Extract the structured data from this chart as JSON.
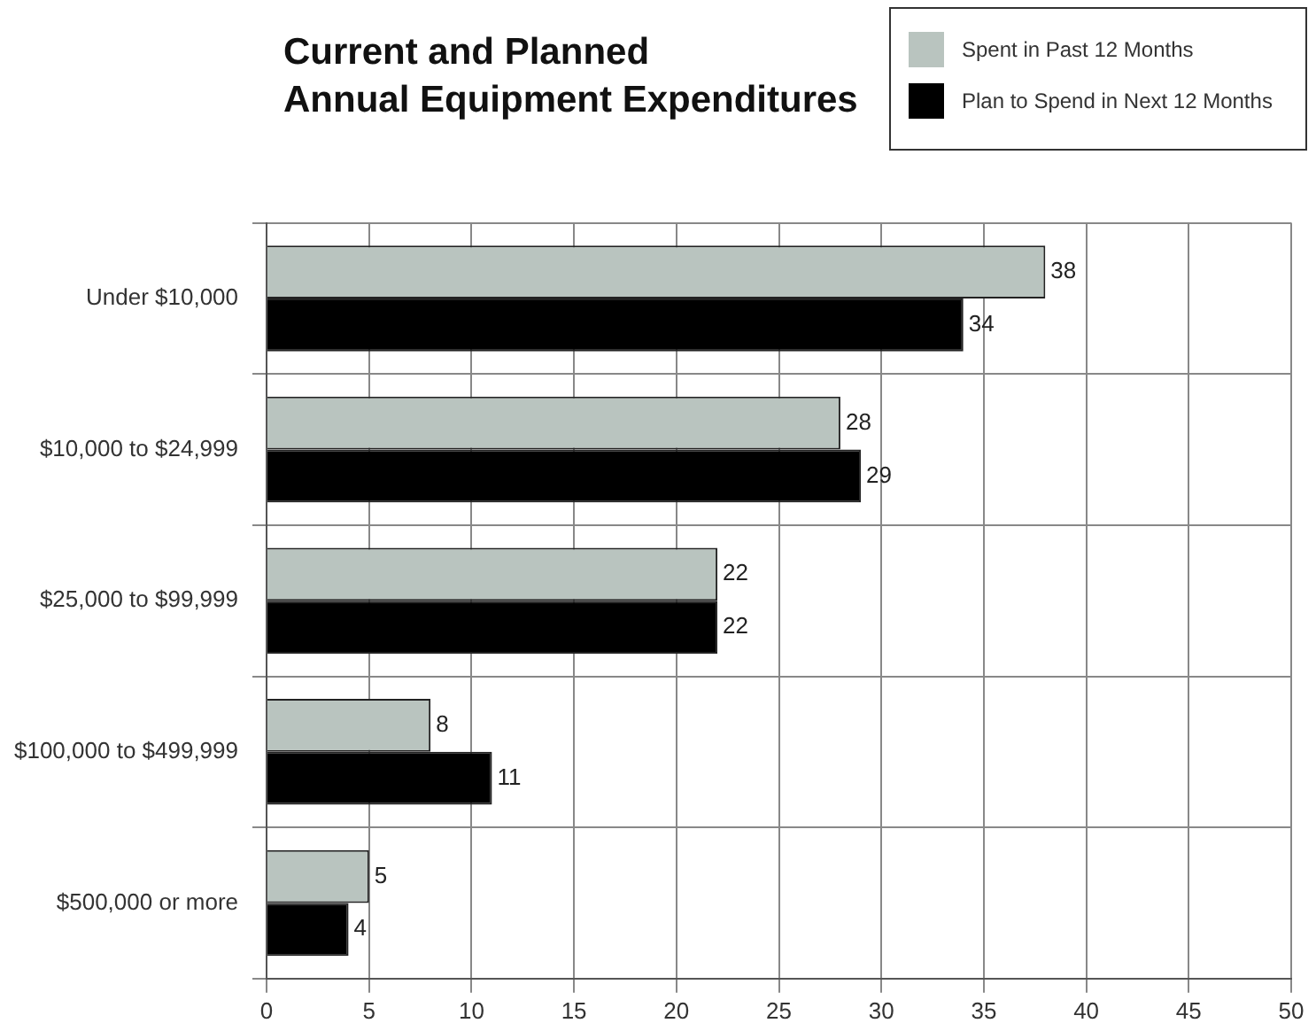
{
  "chart_data": {
    "type": "bar",
    "orientation": "horizontal",
    "title": "Current and Planned\nAnnual Equipment Expenditures",
    "categories": [
      "Under $10,000",
      "$10,000 to $24,999",
      "$25,000 to $99,999",
      "$100,000 to $499,999",
      "$500,000 or more"
    ],
    "series": [
      {
        "name": "Spent in Past 12 Months",
        "color": "#b9c4bf",
        "values": [
          38,
          28,
          22,
          8,
          5
        ]
      },
      {
        "name": "Plan to Spend in Next 12 Months",
        "color": "#000000",
        "values": [
          34,
          29,
          22,
          11,
          4
        ]
      }
    ],
    "xlim": [
      0,
      50
    ],
    "xticks": [
      0,
      5,
      10,
      15,
      20,
      25,
      30,
      35,
      40,
      45,
      50
    ],
    "grid": true,
    "legend": "top right",
    "data_labels": true
  }
}
